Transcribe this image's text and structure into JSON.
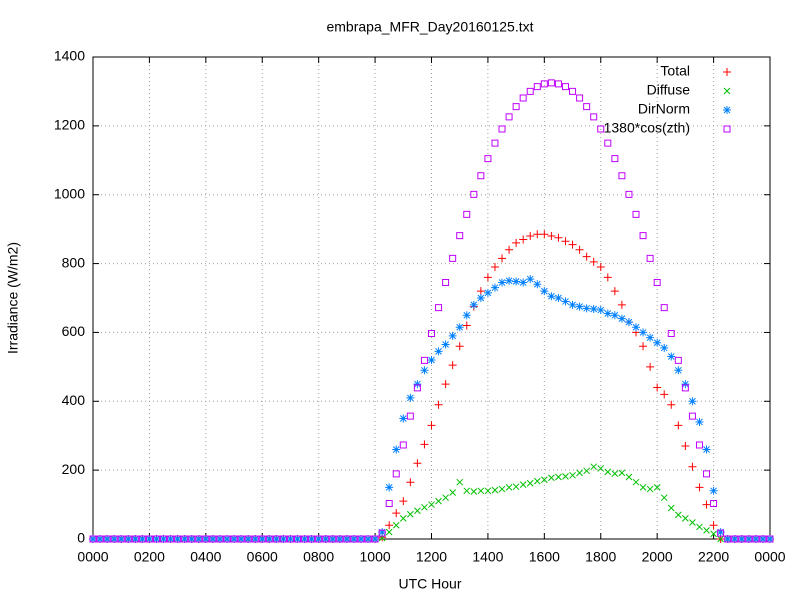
{
  "chart_data": {
    "type": "scatter",
    "title": "embrapa_MFR_Day20160125.txt",
    "xlabel": "UTC Hour",
    "ylabel": "Irradiance (W/m2)",
    "xlim": [
      0,
      24
    ],
    "ylim": [
      0,
      1400
    ],
    "xticks": [
      {
        "value": 0,
        "label": "0000"
      },
      {
        "value": 2,
        "label": "0200"
      },
      {
        "value": 4,
        "label": "0400"
      },
      {
        "value": 6,
        "label": "0600"
      },
      {
        "value": 8,
        "label": "0800"
      },
      {
        "value": 10,
        "label": "1000"
      },
      {
        "value": 12,
        "label": "1200"
      },
      {
        "value": 14,
        "label": "1400"
      },
      {
        "value": 16,
        "label": "1600"
      },
      {
        "value": 18,
        "label": "1800"
      },
      {
        "value": 20,
        "label": "2000"
      },
      {
        "value": 22,
        "label": "2200"
      },
      {
        "value": 24,
        "label": "0000"
      }
    ],
    "yticks": [
      0,
      200,
      400,
      600,
      800,
      1000,
      1200,
      1400
    ],
    "grid": true,
    "legend": "top-right",
    "x": [
      0,
      0.25,
      0.5,
      0.75,
      1,
      1.25,
      1.5,
      1.75,
      2,
      2.25,
      2.5,
      2.75,
      3,
      3.25,
      3.5,
      3.75,
      4,
      4.25,
      4.5,
      4.75,
      5,
      5.25,
      5.5,
      5.75,
      6,
      6.25,
      6.5,
      6.75,
      7,
      7.25,
      7.5,
      7.75,
      8,
      8.25,
      8.5,
      8.75,
      9,
      9.25,
      9.5,
      9.75,
      10,
      10.25,
      10.5,
      10.75,
      11,
      11.25,
      11.5,
      11.75,
      12,
      12.25,
      12.5,
      12.75,
      13,
      13.25,
      13.5,
      13.75,
      14,
      14.25,
      14.5,
      14.75,
      15,
      15.25,
      15.5,
      15.75,
      16,
      16.25,
      16.5,
      16.75,
      17,
      17.25,
      17.5,
      17.75,
      18,
      18.25,
      18.5,
      18.75,
      19,
      19.25,
      19.5,
      19.75,
      20,
      20.25,
      20.5,
      20.75,
      21,
      21.25,
      21.5,
      21.75,
      22,
      22.25,
      22.5,
      22.75,
      23,
      23.25,
      23.5,
      23.75,
      24
    ],
    "series": [
      {
        "name": "Total",
        "color": "#ff0000",
        "marker": "plus",
        "values": [
          0,
          0,
          0,
          0,
          0,
          0,
          0,
          0,
          0,
          0,
          0,
          0,
          0,
          0,
          0,
          0,
          0,
          0,
          0,
          0,
          0,
          0,
          0,
          0,
          0,
          0,
          0,
          0,
          0,
          0,
          0,
          0,
          0,
          0,
          0,
          0,
          0,
          0,
          0,
          0,
          0,
          5,
          40,
          75,
          110,
          165,
          220,
          275,
          330,
          390,
          450,
          505,
          560,
          620,
          675,
          720,
          760,
          790,
          815,
          840,
          860,
          870,
          880,
          885,
          885,
          880,
          875,
          865,
          855,
          840,
          820,
          805,
          790,
          760,
          720,
          680,
          630,
          600,
          560,
          500,
          440,
          420,
          390,
          330,
          270,
          210,
          150,
          100,
          40,
          0,
          0,
          0,
          0,
          0,
          0,
          0,
          0
        ]
      },
      {
        "name": "Diffuse",
        "color": "#00c000",
        "marker": "cross",
        "values": [
          0,
          0,
          0,
          0,
          0,
          0,
          0,
          0,
          0,
          0,
          0,
          0,
          0,
          0,
          0,
          0,
          0,
          0,
          0,
          0,
          0,
          0,
          0,
          0,
          0,
          0,
          0,
          0,
          0,
          0,
          0,
          0,
          0,
          0,
          0,
          0,
          0,
          0,
          0,
          0,
          0,
          3,
          20,
          40,
          60,
          72,
          82,
          92,
          100,
          110,
          120,
          135,
          165,
          140,
          138,
          140,
          140,
          142,
          145,
          150,
          152,
          158,
          162,
          168,
          172,
          178,
          180,
          182,
          185,
          192,
          198,
          210,
          205,
          195,
          190,
          192,
          180,
          165,
          150,
          145,
          150,
          120,
          90,
          70,
          60,
          48,
          35,
          25,
          15,
          0,
          0,
          0,
          0,
          0,
          0,
          0,
          0
        ]
      },
      {
        "name": "DirNorm",
        "color": "#0080ff",
        "marker": "star",
        "values": [
          0,
          0,
          0,
          0,
          0,
          0,
          0,
          0,
          0,
          0,
          0,
          0,
          0,
          0,
          0,
          0,
          0,
          0,
          0,
          0,
          0,
          0,
          0,
          0,
          0,
          0,
          0,
          0,
          0,
          0,
          0,
          0,
          0,
          0,
          0,
          0,
          0,
          0,
          0,
          0,
          0,
          20,
          150,
          260,
          350,
          410,
          450,
          490,
          520,
          545,
          565,
          590,
          615,
          650,
          680,
          700,
          715,
          730,
          745,
          750,
          748,
          745,
          755,
          740,
          720,
          705,
          700,
          690,
          680,
          675,
          670,
          668,
          665,
          655,
          650,
          640,
          630,
          615,
          600,
          585,
          570,
          555,
          530,
          490,
          450,
          400,
          340,
          260,
          140,
          20,
          0,
          0,
          0,
          0,
          0,
          0,
          0
        ]
      },
      {
        "name": "1380*cos(zth)",
        "color": "#c000ff",
        "marker": "square",
        "values": [
          0,
          0,
          0,
          0,
          0,
          0,
          0,
          0,
          0,
          0,
          0,
          0,
          0,
          0,
          0,
          0,
          0,
          0,
          0,
          0,
          0,
          0,
          0,
          0,
          0,
          0,
          0,
          0,
          0,
          0,
          0,
          0,
          0,
          0,
          0,
          0,
          0,
          0,
          0,
          0,
          0,
          17,
          103,
          189,
          273,
          357,
          439,
          519,
          597,
          672,
          745,
          815,
          881,
          943,
          1001,
          1055,
          1105,
          1150,
          1191,
          1226,
          1256,
          1281,
          1300,
          1314,
          1322,
          1325,
          1322,
          1314,
          1300,
          1281,
          1256,
          1226,
          1191,
          1150,
          1105,
          1055,
          1001,
          943,
          881,
          815,
          745,
          672,
          597,
          519,
          439,
          357,
          273,
          189,
          103,
          17,
          0,
          0,
          0,
          0,
          0,
          0,
          0
        ]
      }
    ]
  }
}
